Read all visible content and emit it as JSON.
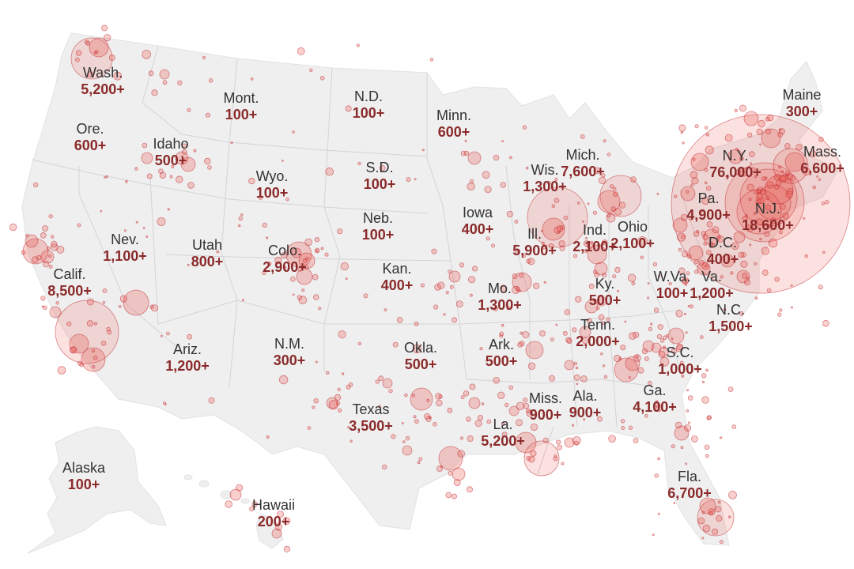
{
  "map": {
    "land_color": "#efefef",
    "border_color": "#ffffff",
    "bubble_fill": "#e8564e",
    "bubble_stroke": "#c0272d",
    "name_color": "#333333",
    "count_color": "#8b2a2a",
    "labels": [
      {
        "state": "Wash.",
        "count": "5,200+"
      },
      {
        "state": "Ore.",
        "count": "600+"
      },
      {
        "state": "Idaho",
        "count": "500+"
      },
      {
        "state": "Mont.",
        "count": "100+"
      },
      {
        "state": "N.D.",
        "count": "100+"
      },
      {
        "state": "Minn.",
        "count": "600+"
      },
      {
        "state": "Maine",
        "count": "300+"
      },
      {
        "state": "Mass.",
        "count": "6,600+"
      },
      {
        "state": "N.Y.",
        "count": "76,000+"
      },
      {
        "state": "Pa.",
        "count": "4,900+"
      },
      {
        "state": "N.J.",
        "count": "18,600+"
      },
      {
        "state": "D.C.",
        "count": "400+"
      },
      {
        "state": "Va.",
        "count": "1,200+"
      },
      {
        "state": "W.Va.",
        "count": "100+"
      },
      {
        "state": "Mich.",
        "count": "7,600+"
      },
      {
        "state": "Wis.",
        "count": "1,300+"
      },
      {
        "state": "S.D.",
        "count": "100+"
      },
      {
        "state": "Wyo.",
        "count": "100+"
      },
      {
        "state": "Iowa",
        "count": "400+"
      },
      {
        "state": "Ill.",
        "count": "5,900+"
      },
      {
        "state": "Ind.",
        "count": "2,100+"
      },
      {
        "state": "Ohio",
        "count": "2,100+"
      },
      {
        "state": "Neb.",
        "count": "100+"
      },
      {
        "state": "Nev.",
        "count": "1,100+"
      },
      {
        "state": "Utah",
        "count": "800+"
      },
      {
        "state": "Colo.",
        "count": "2,900+"
      },
      {
        "state": "Calif.",
        "count": "8,500+"
      },
      {
        "state": "Kan.",
        "count": "400+"
      },
      {
        "state": "Mo.",
        "count": "1,300+"
      },
      {
        "state": "Ky.",
        "count": "500+"
      },
      {
        "state": "N.C.",
        "count": "1,500+"
      },
      {
        "state": "Tenn.",
        "count": "2,000+"
      },
      {
        "state": "Ariz.",
        "count": "1,200+"
      },
      {
        "state": "N.M.",
        "count": "300+"
      },
      {
        "state": "Okla.",
        "count": "500+"
      },
      {
        "state": "Ark.",
        "count": "500+"
      },
      {
        "state": "S.C.",
        "count": "1,000+"
      },
      {
        "state": "Ga.",
        "count": "4,100+"
      },
      {
        "state": "Miss.",
        "count": "900+"
      },
      {
        "state": "Ala.",
        "count": "900+"
      },
      {
        "state": "Texas",
        "count": "3,500+"
      },
      {
        "state": "La.",
        "count": "5,200+"
      },
      {
        "state": "Fla.",
        "count": "6,700+"
      },
      {
        "state": "Alaska",
        "count": "100+"
      },
      {
        "state": "Hawaii",
        "count": "200+"
      }
    ]
  }
}
